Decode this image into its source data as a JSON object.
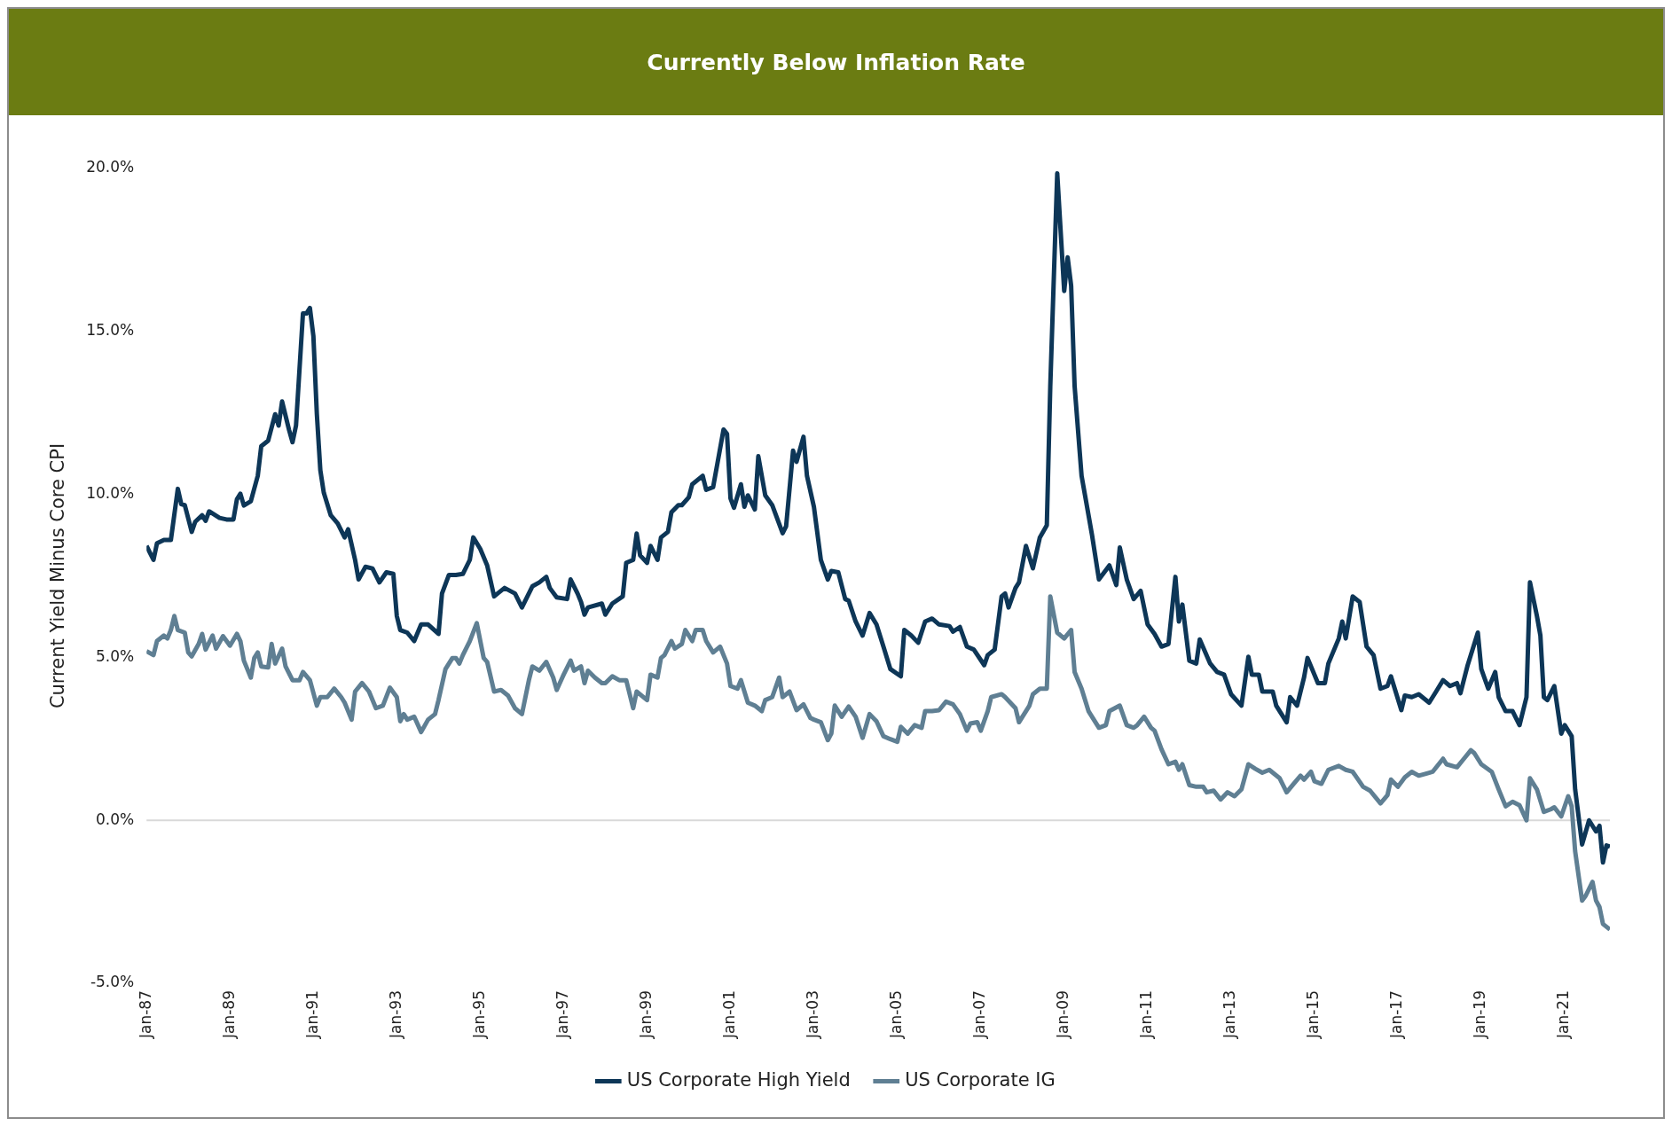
{
  "chart_data": {
    "type": "line",
    "title": "Currently Below Inflation Rate",
    "ylabel": "Current Yield Minus Core CPI",
    "xlim": [
      "1987-01",
      "2022-02"
    ],
    "xticks": [
      {
        "value": "1987-01",
        "label": "Jan-87"
      },
      {
        "value": "1989-01",
        "label": "Jan-89"
      },
      {
        "value": "1991-01",
        "label": "Jan-91"
      },
      {
        "value": "1993-01",
        "label": "Jan-93"
      },
      {
        "value": "1995-01",
        "label": "Jan-95"
      },
      {
        "value": "1997-01",
        "label": "Jan-97"
      },
      {
        "value": "1999-01",
        "label": "Jan-99"
      },
      {
        "value": "2001-01",
        "label": "Jan-01"
      },
      {
        "value": "2003-01",
        "label": "Jan-03"
      },
      {
        "value": "2005-01",
        "label": "Jan-05"
      },
      {
        "value": "2007-01",
        "label": "Jan-07"
      },
      {
        "value": "2009-01",
        "label": "Jan-09"
      },
      {
        "value": "2011-01",
        "label": "Jan-11"
      },
      {
        "value": "2013-01",
        "label": "Jan-13"
      },
      {
        "value": "2015-01",
        "label": "Jan-15"
      },
      {
        "value": "2017-01",
        "label": "Jan-17"
      },
      {
        "value": "2019-01",
        "label": "Jan-19"
      },
      {
        "value": "2021-01",
        "label": "Jan-21"
      }
    ],
    "ylim": [
      -5,
      20
    ],
    "yticks": [
      {
        "value": -5,
        "label": "-5.0%"
      },
      {
        "value": 0,
        "label": "0.0%"
      },
      {
        "value": 5,
        "label": "5.0%"
      },
      {
        "value": 10,
        "label": "10.0%"
      },
      {
        "value": 15,
        "label": "15.0%"
      },
      {
        "value": 20,
        "label": "20.0%"
      }
    ],
    "ref_lines": [
      {
        "axis": "y",
        "value": 0,
        "color": "#d9d9d9"
      }
    ],
    "legend": "bottom",
    "series": [
      {
        "name": "US Corporate High Yield",
        "color": "#0d3657",
        "x": [
          "1987-01",
          "1987-03",
          "1987-04",
          "1987-06",
          "1987-08",
          "1987-10",
          "1987-11",
          "1987-12",
          "1988-02",
          "1988-03",
          "1988-05",
          "1988-06",
          "1988-07",
          "1988-10",
          "1988-12",
          "1989-02",
          "1989-03",
          "1989-04",
          "1989-05",
          "1989-07",
          "1989-09",
          "1989-10",
          "1989-12",
          "1990-02",
          "1990-03",
          "1990-04",
          "1990-06",
          "1990-07",
          "1990-08",
          "1990-10",
          "1990-11",
          "1990-12",
          "1991-01",
          "1991-02",
          "1991-03",
          "1991-04",
          "1991-06",
          "1991-08",
          "1991-10",
          "1991-11",
          "1992-01",
          "1992-02",
          "1992-04",
          "1992-06",
          "1992-08",
          "1992-10",
          "1992-12",
          "1993-01",
          "1993-02",
          "1993-04",
          "1993-06",
          "1993-08",
          "1993-10",
          "1994-01",
          "1994-02",
          "1994-04",
          "1994-06",
          "1994-08",
          "1994-10",
          "1994-11",
          "1995-01",
          "1995-03",
          "1995-05",
          "1995-06",
          "1995-08",
          "1995-11",
          "1996-01",
          "1996-04",
          "1996-06",
          "1996-08",
          "1996-09",
          "1996-11",
          "1997-02",
          "1997-03",
          "1997-05",
          "1997-06",
          "1997-07",
          "1997-08",
          "1997-12",
          "1998-01",
          "1998-03",
          "1998-06",
          "1998-07",
          "1998-09",
          "1998-10",
          "1998-11",
          "1999-01",
          "1999-02",
          "1999-04",
          "1999-05",
          "1999-07",
          "1999-08",
          "1999-10",
          "1999-11",
          "2000-01",
          "2000-02",
          "2000-05",
          "2000-06",
          "2000-08",
          "2000-11",
          "2000-12",
          "2001-01",
          "2001-02",
          "2001-04",
          "2001-05",
          "2001-06",
          "2001-08",
          "2001-09",
          "2001-11",
          "2002-01",
          "2002-04",
          "2002-05",
          "2002-07",
          "2002-08",
          "2002-10",
          "2002-11",
          "2003-01",
          "2003-03",
          "2003-05",
          "2003-06",
          "2003-08",
          "2003-10",
          "2003-11",
          "2004-01",
          "2004-03",
          "2004-05",
          "2004-07",
          "2004-09",
          "2004-11",
          "2005-02",
          "2005-03",
          "2005-05",
          "2005-07",
          "2005-09",
          "2005-11",
          "2006-01",
          "2006-04",
          "2006-05",
          "2006-07",
          "2006-09",
          "2006-11",
          "2007-02",
          "2007-03",
          "2007-05",
          "2007-07",
          "2007-08",
          "2007-09",
          "2007-11",
          "2007-12",
          "2008-02",
          "2008-04",
          "2008-06",
          "2008-08",
          "2008-09",
          "2008-11",
          "2009-01",
          "2009-02",
          "2009-03",
          "2009-04",
          "2009-06",
          "2009-07",
          "2009-09",
          "2009-11",
          "2010-02",
          "2010-04",
          "2010-05",
          "2010-07",
          "2010-09",
          "2010-11",
          "2011-01",
          "2011-03",
          "2011-05",
          "2011-07",
          "2011-09",
          "2011-10",
          "2011-11",
          "2012-01",
          "2012-03",
          "2012-04",
          "2012-07",
          "2012-09",
          "2012-11",
          "2013-01",
          "2013-04",
          "2013-06",
          "2013-07",
          "2013-09",
          "2013-10",
          "2014-01",
          "2014-02",
          "2014-05",
          "2014-06",
          "2014-08",
          "2014-10",
          "2014-11",
          "2015-02",
          "2015-04",
          "2015-05",
          "2015-08",
          "2015-09",
          "2015-10",
          "2015-12",
          "2016-02",
          "2016-04",
          "2016-06",
          "2016-08",
          "2016-10",
          "2016-11",
          "2017-02",
          "2017-03",
          "2017-05",
          "2017-07",
          "2017-10",
          "2017-12",
          "2018-02",
          "2018-04",
          "2018-06",
          "2018-07",
          "2018-09",
          "2018-12",
          "2019-01",
          "2019-03",
          "2019-05",
          "2019-06",
          "2019-08",
          "2019-10",
          "2019-12",
          "2020-02",
          "2020-03",
          "2020-05",
          "2020-06",
          "2020-07",
          "2020-08",
          "2020-10",
          "2020-12",
          "2021-01",
          "2021-03",
          "2021-04",
          "2021-06",
          "2021-08",
          "2021-10",
          "2021-11",
          "2021-12",
          "2022-01",
          "2022-02"
        ],
        "values": [
          8.42,
          7.99,
          8.5,
          8.6,
          8.6,
          10.17,
          9.7,
          9.67,
          8.85,
          9.16,
          9.36,
          9.19,
          9.48,
          9.28,
          9.23,
          9.23,
          9.85,
          10.02,
          9.66,
          9.79,
          10.57,
          11.48,
          11.65,
          12.46,
          12.11,
          12.85,
          11.98,
          11.6,
          12.11,
          15.55,
          15.55,
          15.72,
          14.86,
          12.46,
          10.74,
          10.05,
          9.36,
          9.11,
          8.68,
          8.93,
          7.99,
          7.39,
          7.78,
          7.73,
          7.3,
          7.61,
          7.56,
          6.27,
          5.84,
          5.76,
          5.5,
          6.01,
          6.01,
          5.72,
          6.96,
          7.53,
          7.53,
          7.56,
          7.99,
          8.68,
          8.33,
          7.82,
          6.87,
          6.96,
          7.13,
          6.96,
          6.53,
          7.18,
          7.3,
          7.47,
          7.13,
          6.84,
          6.79,
          7.39,
          6.96,
          6.7,
          6.31,
          6.53,
          6.65,
          6.31,
          6.65,
          6.87,
          7.9,
          7.99,
          8.8,
          8.13,
          7.9,
          8.42,
          7.99,
          8.68,
          8.85,
          9.45,
          9.67,
          9.67,
          9.91,
          10.31,
          10.57,
          10.14,
          10.22,
          11.99,
          11.86,
          9.88,
          9.59,
          10.31,
          9.62,
          9.97,
          9.54,
          11.17,
          9.97,
          9.67,
          8.81,
          9.02,
          11.34,
          11.0,
          11.77,
          10.57,
          9.62,
          7.99,
          7.39,
          7.65,
          7.61,
          6.79,
          6.74,
          6.1,
          5.67,
          6.36,
          6.01,
          5.33,
          4.64,
          4.42,
          5.84,
          5.67,
          5.45,
          6.1,
          6.19,
          6.01,
          5.96,
          5.79,
          5.93,
          5.33,
          5.24,
          4.76,
          5.07,
          5.24,
          6.87,
          6.96,
          6.53,
          7.13,
          7.3,
          8.42,
          7.73,
          8.68,
          9.05,
          13.32,
          19.85,
          16.24,
          17.27,
          16.41,
          13.32,
          10.57,
          9.97,
          8.76,
          7.39,
          7.82,
          7.22,
          8.37,
          7.39,
          6.79,
          7.04,
          6.01,
          5.72,
          5.33,
          5.41,
          7.47,
          6.1,
          6.62,
          4.9,
          4.81,
          5.55,
          4.81,
          4.55,
          4.47,
          3.87,
          3.52,
          5.02,
          4.47,
          4.47,
          3.95,
          3.95,
          3.52,
          3.01,
          3.78,
          3.52,
          4.38,
          4.98,
          4.21,
          4.21,
          4.81,
          5.58,
          6.1,
          5.58,
          6.87,
          6.7,
          5.33,
          5.07,
          4.04,
          4.12,
          4.42,
          3.38,
          3.83,
          3.78,
          3.87,
          3.61,
          3.95,
          4.3,
          4.12,
          4.21,
          3.9,
          4.73,
          5.76,
          4.64,
          4.04,
          4.55,
          3.78,
          3.35,
          3.35,
          2.92,
          3.78,
          7.3,
          6.27,
          5.67,
          3.78,
          3.69,
          4.12,
          2.66,
          2.92,
          2.58,
          0.95,
          -0.74,
          0.0,
          -0.34,
          -0.17,
          -1.29,
          -0.77,
          -0.81
        ]
      },
      {
        "name": "US Corporate IG",
        "color": "#5f7f93",
        "x": [
          "1987-01",
          "1987-03",
          "1987-04",
          "1987-06",
          "1987-07",
          "1987-08",
          "1987-09",
          "1987-10",
          "1987-12",
          "1988-01",
          "1988-02",
          "1988-04",
          "1988-05",
          "1988-06",
          "1988-08",
          "1988-09",
          "1988-11",
          "1989-01",
          "1989-03",
          "1989-04",
          "1989-05",
          "1989-07",
          "1989-08",
          "1989-09",
          "1989-10",
          "1989-12",
          "1990-01",
          "1990-02",
          "1990-04",
          "1990-05",
          "1990-07",
          "1990-09",
          "1990-10",
          "1990-12",
          "1991-02",
          "1991-03",
          "1991-05",
          "1991-07",
          "1991-09",
          "1991-10",
          "1991-12",
          "1992-01",
          "1992-03",
          "1992-05",
          "1992-07",
          "1992-09",
          "1992-11",
          "1993-01",
          "1993-02",
          "1993-03",
          "1993-04",
          "1993-06",
          "1993-08",
          "1993-10",
          "1993-12",
          "1994-01",
          "1994-03",
          "1994-05",
          "1994-06",
          "1994-07",
          "1994-08",
          "1994-10",
          "1994-12",
          "1995-02",
          "1995-03",
          "1995-05",
          "1995-07",
          "1995-09",
          "1995-11",
          "1996-01",
          "1996-03",
          "1996-04",
          "1996-06",
          "1996-08",
          "1996-10",
          "1996-11",
          "1997-01",
          "1997-03",
          "1997-04",
          "1997-06",
          "1997-07",
          "1997-08",
          "1997-10",
          "1997-12",
          "1998-01",
          "1998-03",
          "1998-05",
          "1998-07",
          "1998-09",
          "1998-10",
          "1999-01",
          "1999-02",
          "1999-04",
          "1999-05",
          "1999-06",
          "1999-08",
          "1999-09",
          "1999-11",
          "1999-12",
          "2000-02",
          "2000-03",
          "2000-05",
          "2000-06",
          "2000-08",
          "2000-10",
          "2000-12",
          "2001-01",
          "2001-03",
          "2001-04",
          "2001-06",
          "2001-08",
          "2001-10",
          "2001-11",
          "2002-01",
          "2002-03",
          "2002-04",
          "2002-06",
          "2002-08",
          "2002-10",
          "2002-12",
          "2003-01",
          "2003-03",
          "2003-05",
          "2003-06",
          "2003-07",
          "2003-09",
          "2003-11",
          "2004-01",
          "2004-03",
          "2004-05",
          "2004-07",
          "2004-09",
          "2004-11",
          "2005-01",
          "2005-02",
          "2005-04",
          "2005-06",
          "2005-08",
          "2005-09",
          "2005-11",
          "2006-01",
          "2006-03",
          "2006-05",
          "2006-07",
          "2006-09",
          "2006-10",
          "2006-12",
          "2007-01",
          "2007-03",
          "2007-04",
          "2007-07",
          "2007-08",
          "2007-11",
          "2007-12",
          "2008-03",
          "2008-04",
          "2008-06",
          "2008-08",
          "2008-09",
          "2008-11",
          "2009-01",
          "2009-03",
          "2009-04",
          "2009-06",
          "2009-08",
          "2009-11",
          "2010-01",
          "2010-02",
          "2010-05",
          "2010-07",
          "2010-09",
          "2010-10",
          "2010-12",
          "2011-02",
          "2011-03",
          "2011-05",
          "2011-07",
          "2011-09",
          "2011-10",
          "2011-11",
          "2012-01",
          "2012-03",
          "2012-05",
          "2012-06",
          "2012-08",
          "2012-10",
          "2012-12",
          "2013-02",
          "2013-04",
          "2013-06",
          "2013-08",
          "2013-10",
          "2013-12",
          "2014-03",
          "2014-05",
          "2014-07",
          "2014-09",
          "2014-10",
          "2014-12",
          "2015-01",
          "2015-03",
          "2015-05",
          "2015-08",
          "2015-10",
          "2015-12",
          "2016-03",
          "2016-05",
          "2016-08",
          "2016-10",
          "2016-11",
          "2017-01",
          "2017-03",
          "2017-05",
          "2017-07",
          "2017-10",
          "2017-11",
          "2018-02",
          "2018-03",
          "2018-06",
          "2018-08",
          "2018-10",
          "2018-11",
          "2019-01",
          "2019-04",
          "2019-06",
          "2019-08",
          "2019-10",
          "2019-12",
          "2020-02",
          "2020-03",
          "2020-05",
          "2020-07",
          "2020-09",
          "2020-10",
          "2020-12",
          "2021-02",
          "2021-03",
          "2021-04",
          "2021-06",
          "2021-07",
          "2021-09",
          "2021-10",
          "2021-11",
          "2021-12",
          "2022-02"
        ],
        "values": [
          5.19,
          5.07,
          5.5,
          5.67,
          5.58,
          5.84,
          6.27,
          5.84,
          5.76,
          5.15,
          5.03,
          5.41,
          5.72,
          5.24,
          5.67,
          5.27,
          5.65,
          5.36,
          5.72,
          5.5,
          4.9,
          4.38,
          4.98,
          5.15,
          4.72,
          4.69,
          5.41,
          4.81,
          5.27,
          4.72,
          4.3,
          4.3,
          4.55,
          4.3,
          3.52,
          3.78,
          3.78,
          4.04,
          3.78,
          3.61,
          3.09,
          3.95,
          4.21,
          3.95,
          3.44,
          3.52,
          4.07,
          3.78,
          3.04,
          3.26,
          3.09,
          3.18,
          2.71,
          3.09,
          3.26,
          3.69,
          4.64,
          4.98,
          4.98,
          4.81,
          5.07,
          5.5,
          6.05,
          4.98,
          4.86,
          3.95,
          4.0,
          3.83,
          3.44,
          3.26,
          4.3,
          4.72,
          4.59,
          4.86,
          4.38,
          4.0,
          4.47,
          4.9,
          4.59,
          4.72,
          4.21,
          4.59,
          4.38,
          4.21,
          4.21,
          4.42,
          4.3,
          4.3,
          3.44,
          3.95,
          3.69,
          4.47,
          4.38,
          4.98,
          5.07,
          5.5,
          5.27,
          5.41,
          5.84,
          5.5,
          5.84,
          5.84,
          5.5,
          5.15,
          5.33,
          4.81,
          4.12,
          4.04,
          4.3,
          3.61,
          3.52,
          3.35,
          3.69,
          3.78,
          4.38,
          3.78,
          3.95,
          3.38,
          3.56,
          3.14,
          3.09,
          3.01,
          2.46,
          2.66,
          3.52,
          3.18,
          3.49,
          3.18,
          2.53,
          3.26,
          3.04,
          2.58,
          2.49,
          2.41,
          2.87,
          2.66,
          2.92,
          2.84,
          3.35,
          3.35,
          3.38,
          3.64,
          3.56,
          3.26,
          2.75,
          2.97,
          3.01,
          2.75,
          3.35,
          3.78,
          3.87,
          3.78,
          3.44,
          3.01,
          3.52,
          3.87,
          4.04,
          4.04,
          6.87,
          5.76,
          5.58,
          5.84,
          4.55,
          4.04,
          3.35,
          2.84,
          2.92,
          3.35,
          3.52,
          2.92,
          2.84,
          2.92,
          3.18,
          2.84,
          2.75,
          2.18,
          1.72,
          1.8,
          1.55,
          1.72,
          1.08,
          1.03,
          1.03,
          0.86,
          0.91,
          0.64,
          0.86,
          0.74,
          0.95,
          1.72,
          1.58,
          1.46,
          1.55,
          1.29,
          0.86,
          1.12,
          1.37,
          1.25,
          1.49,
          1.2,
          1.12,
          1.55,
          1.67,
          1.55,
          1.49,
          1.03,
          0.91,
          0.52,
          0.77,
          1.25,
          1.03,
          1.32,
          1.49,
          1.37,
          1.46,
          1.49,
          1.89,
          1.72,
          1.63,
          1.89,
          2.15,
          2.06,
          1.72,
          1.49,
          0.95,
          0.43,
          0.57,
          0.46,
          0.0,
          1.29,
          0.95,
          0.26,
          0.34,
          0.4,
          0.12,
          0.74,
          0.43,
          -0.95,
          -2.46,
          -2.32,
          -1.89,
          -2.46,
          -2.66,
          -3.18,
          -3.35
        ]
      }
    ]
  }
}
